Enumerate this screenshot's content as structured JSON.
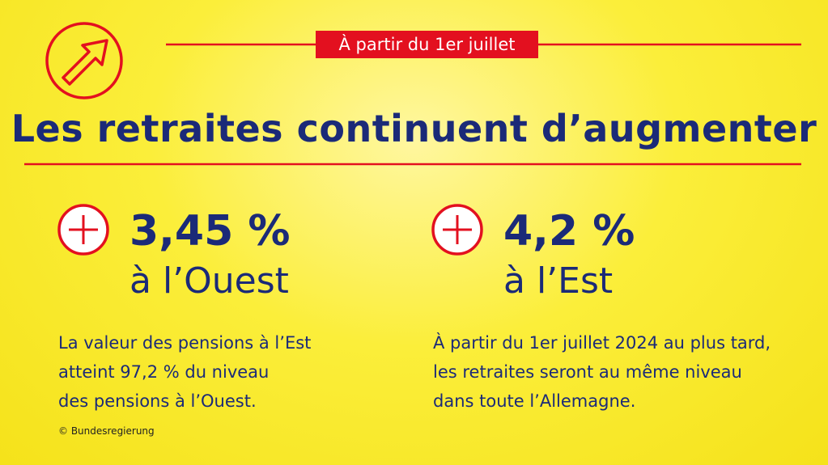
{
  "badge": "À partir du 1er juillet",
  "title": "Les retraites continuent d’augmenter",
  "blocks": [
    {
      "figure": "3,45 %",
      "region": "à l’Ouest",
      "text": [
        "La valeur des pensions à l’Est",
        "atteint 97,2 % du niveau",
        "des pensions à l’Ouest."
      ]
    },
    {
      "figure": "4,2 %",
      "region": "à l’Est",
      "text": [
        "À partir du 1er juillet 2024 au plus tard,",
        "les retraites seront au même niveau",
        "dans toute l’Allemagne."
      ]
    }
  ],
  "credit": "© Bundesregierung"
}
